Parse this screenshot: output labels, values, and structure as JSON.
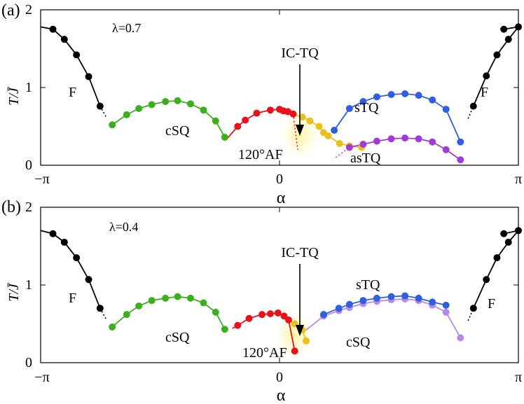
{
  "chart_data": [
    {
      "type": "line",
      "panel_label": "(a)",
      "lambda_label": "λ=0.7",
      "xlabel": "α",
      "ylabel": "T/J̄",
      "xlim": [
        -3.14159,
        3.14159
      ],
      "ylim": [
        0,
        2
      ],
      "x_tick_labels": [
        "−π",
        "0",
        "π"
      ],
      "x_tick_values": [
        -3.14159,
        0,
        3.14159
      ],
      "y_tick_labels": [
        "0",
        "1",
        "2"
      ],
      "y_tick_values": [
        0,
        1,
        2
      ],
      "series": [
        {
          "name": "F-left",
          "color": "#000000",
          "line": "solid",
          "x": [
            -3.14159,
            -2.98,
            -2.83,
            -2.67,
            -2.51,
            -2.36
          ],
          "y": [
            1.78,
            1.75,
            1.62,
            1.42,
            1.14,
            0.76
          ],
          "markers_from": 1
        },
        {
          "name": "F-left-dashed",
          "color": "#000000",
          "line": "dotted",
          "x": [
            -2.36,
            -2.28
          ],
          "y": [
            0.76,
            0.62
          ],
          "markers_from": 99
        },
        {
          "name": "cSQ",
          "color": "#3cb01c",
          "line": "solid",
          "x": [
            -2.2,
            -2.01,
            -1.85,
            -1.68,
            -1.5,
            -1.34,
            -1.17,
            -1.0,
            -0.84,
            -0.72
          ],
          "y": [
            0.52,
            0.65,
            0.73,
            0.78,
            0.82,
            0.83,
            0.79,
            0.71,
            0.57,
            0.36
          ],
          "markers_from": 0
        },
        {
          "name": "120AF",
          "color": "#e8121a",
          "line": "solid",
          "x": [
            -0.7,
            -0.55,
            -0.45,
            -0.3,
            -0.12,
            0.0,
            0.05,
            0.11,
            0.18
          ],
          "y": [
            0.33,
            0.5,
            0.58,
            0.67,
            0.71,
            0.72,
            0.7,
            0.69,
            0.66
          ],
          "markers_from": 1
        },
        {
          "name": "120AF-boundary",
          "color": "#e8121a",
          "line": "dotted",
          "x": [
            0.18,
            0.24
          ],
          "y": [
            0.66,
            0.2
          ],
          "markers_from": 99
        },
        {
          "name": "IC-TQ",
          "color": "#e8c21a",
          "line": "solid",
          "x": [
            0.18,
            0.3,
            0.4,
            0.52,
            0.58,
            0.64,
            0.79,
            0.92,
            1.08
          ],
          "y": [
            0.66,
            0.62,
            0.57,
            0.5,
            0.42,
            0.38,
            0.28,
            0.25,
            0.23
          ],
          "markers_from": 1
        },
        {
          "name": "sTQ",
          "color": "#2f5fe0",
          "line": "solid",
          "x": [
            0.72,
            0.92,
            1.1,
            1.28,
            1.47,
            1.65,
            1.83,
            2.01,
            2.19,
            2.38
          ],
          "y": [
            0.45,
            0.73,
            0.82,
            0.88,
            0.91,
            0.92,
            0.9,
            0.84,
            0.72,
            0.3
          ],
          "markers_from": 0
        },
        {
          "name": "asTQ",
          "color": "#a13ad6",
          "line": "solid",
          "x": [
            0.92,
            1.1,
            1.28,
            1.47,
            1.65,
            1.83,
            2.01,
            2.19,
            2.38
          ],
          "y": [
            0.23,
            0.27,
            0.31,
            0.34,
            0.35,
            0.34,
            0.3,
            0.2,
            0.07
          ],
          "markers_from": 0
        },
        {
          "name": "asTQ-dashed",
          "color": "#a13ad6",
          "line": "dotted",
          "x": [
            0.74,
            0.92
          ],
          "y": [
            0.1,
            0.23
          ],
          "markers_from": 99
        },
        {
          "name": "F-right-dashed",
          "color": "#000000",
          "line": "dotted",
          "x": [
            2.48,
            2.55
          ],
          "y": [
            0.6,
            0.76
          ],
          "markers_from": 99
        },
        {
          "name": "F-right",
          "color": "#000000",
          "line": "solid",
          "x": [
            2.55,
            2.72,
            2.86,
            3.01,
            3.14159,
            2.95
          ],
          "y": [
            0.76,
            1.15,
            1.42,
            1.62,
            1.78,
            1.75
          ],
          "markers_from": 0
        }
      ],
      "annotations": {
        "F_left": "F",
        "F_right": "F",
        "cSQ": "cSQ",
        "AF120": "120°AF",
        "sTQ": "sTQ",
        "asTQ": "asTQ",
        "ICTQ": "IC-TQ"
      }
    },
    {
      "type": "line",
      "panel_label": "(b)",
      "lambda_label": "λ=0.4",
      "xlabel": "α",
      "ylabel": "T/J̄",
      "xlim": [
        -3.14159,
        3.14159
      ],
      "ylim": [
        0,
        2
      ],
      "x_tick_labels": [
        "−π",
        "0",
        "π"
      ],
      "x_tick_values": [
        -3.14159,
        0,
        3.14159
      ],
      "y_tick_labels": [
        "0",
        "1",
        "2"
      ],
      "y_tick_values": [
        0,
        1,
        2
      ],
      "series": [
        {
          "name": "F-left",
          "color": "#000000",
          "line": "solid",
          "x": [
            -3.14159,
            -2.98,
            -2.83,
            -2.67,
            -2.51,
            -2.36
          ],
          "y": [
            1.7,
            1.66,
            1.55,
            1.35,
            1.07,
            0.7
          ],
          "markers_from": 1
        },
        {
          "name": "F-left-dashed",
          "color": "#000000",
          "line": "dotted",
          "x": [
            -2.36,
            -2.28
          ],
          "y": [
            0.7,
            0.56
          ],
          "markers_from": 99
        },
        {
          "name": "cSQ",
          "color": "#3cb01c",
          "line": "solid",
          "x": [
            -2.2,
            -2.01,
            -1.85,
            -1.68,
            -1.5,
            -1.34,
            -1.17,
            -1.0,
            -0.84,
            -0.72
          ],
          "y": [
            0.46,
            0.62,
            0.73,
            0.8,
            0.83,
            0.85,
            0.83,
            0.77,
            0.65,
            0.43
          ],
          "markers_from": 0
        },
        {
          "name": "120AF",
          "color": "#e8121a",
          "line": "solid",
          "x": [
            -0.62,
            -0.55,
            -0.4,
            -0.23,
            -0.12,
            -0.02,
            0.06,
            0.12,
            0.2
          ],
          "y": [
            0.44,
            0.48,
            0.57,
            0.62,
            0.63,
            0.64,
            0.6,
            0.55,
            0.15
          ],
          "markers_from": 1
        },
        {
          "name": "IC-TQ",
          "color": "#e8c21a",
          "line": "solid",
          "x": [
            0.12,
            0.2,
            0.3,
            0.35
          ],
          "y": [
            0.55,
            0.5,
            0.42,
            0.28
          ],
          "markers_from": 1
        },
        {
          "name": "cSQ-right",
          "color": "#b58be8",
          "line": "solid",
          "x": [
            0.35,
            0.58,
            0.78,
            0.92,
            1.1,
            1.28,
            1.47,
            1.65,
            1.83,
            2.01,
            2.19,
            2.38
          ],
          "y": [
            0.42,
            0.6,
            0.67,
            0.71,
            0.76,
            0.79,
            0.81,
            0.82,
            0.8,
            0.74,
            0.65,
            0.32
          ],
          "markers_from": 1
        },
        {
          "name": "sTQ",
          "color": "#2f5fe0",
          "line": "solid",
          "x": [
            0.58,
            0.78,
            0.92,
            1.1,
            1.28,
            1.47,
            1.65,
            1.83,
            2.01,
            2.19
          ],
          "y": [
            0.62,
            0.7,
            0.75,
            0.8,
            0.83,
            0.85,
            0.86,
            0.83,
            0.78,
            0.74
          ],
          "markers_from": 0
        },
        {
          "name": "F-right-dashed",
          "color": "#000000",
          "line": "dotted",
          "x": [
            2.48,
            2.55
          ],
          "y": [
            0.54,
            0.7
          ],
          "markers_from": 99
        },
        {
          "name": "F-right",
          "color": "#000000",
          "line": "solid",
          "x": [
            2.55,
            2.72,
            2.86,
            3.01,
            3.14159,
            2.95
          ],
          "y": [
            0.7,
            1.07,
            1.35,
            1.55,
            1.7,
            1.66
          ],
          "markers_from": 0
        }
      ],
      "annotations": {
        "F_left": "F",
        "F_right": "F",
        "cSQ_left": "cSQ",
        "AF120": "120°AF",
        "sTQ": "sTQ",
        "cSQ_right": "cSQ",
        "ICTQ": "IC-TQ"
      }
    }
  ]
}
